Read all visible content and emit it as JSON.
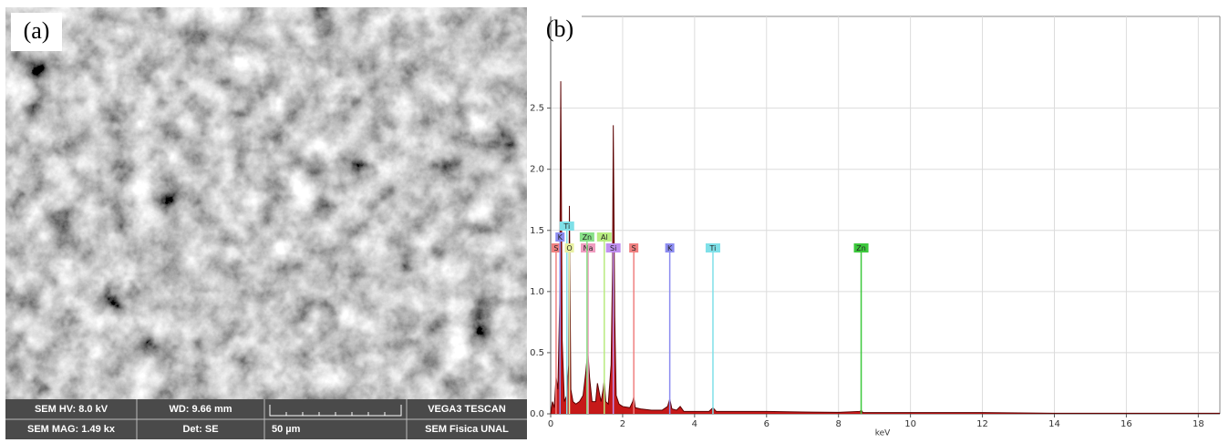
{
  "panel_a": {
    "label": "(a)",
    "hv": "SEM HV: 8.0 kV",
    "wd": "WD: 9.66 mm",
    "brand": "VEGA3 TESCAN",
    "mag": "SEM MAG: 1.49 kx",
    "det": "Det: SE",
    "scale": "50 µm",
    "lab": "SEM Fisica UNAL"
  },
  "chart_data": {
    "type": "area",
    "label": "(b)",
    "xlabel": "keV",
    "x": [
      0,
      0.05,
      0.1,
      0.15,
      0.2,
      0.25,
      0.28,
      0.32,
      0.38,
      0.45,
      0.5,
      0.52,
      0.56,
      0.62,
      0.7,
      0.8,
      0.9,
      0.98,
      1.01,
      1.04,
      1.08,
      1.15,
      1.25,
      1.3,
      1.4,
      1.46,
      1.49,
      1.53,
      1.6,
      1.68,
      1.72,
      1.74,
      1.78,
      1.82,
      1.9,
      2.0,
      2.2,
      2.28,
      2.31,
      2.35,
      2.5,
      2.8,
      3.1,
      3.25,
      3.31,
      3.37,
      3.5,
      3.6,
      3.7,
      4.0,
      4.4,
      4.51,
      4.6,
      5.0,
      6,
      7,
      8,
      8.6,
      8.63,
      8.68,
      9,
      10,
      12,
      14,
      16,
      18,
      18.6
    ],
    "series": [
      {
        "color": "#c00000",
        "line_color": "#5a0000",
        "values": [
          0.0,
          0.1,
          0.05,
          0.3,
          0.2,
          0.9,
          2.72,
          0.6,
          0.1,
          0.15,
          0.4,
          1.7,
          0.2,
          0.1,
          0.08,
          0.1,
          0.15,
          0.35,
          0.45,
          0.48,
          0.3,
          0.1,
          0.1,
          0.25,
          0.1,
          0.2,
          0.28,
          0.1,
          0.08,
          0.4,
          1.2,
          2.36,
          0.8,
          0.15,
          0.08,
          0.06,
          0.05,
          0.1,
          0.14,
          0.05,
          0.04,
          0.03,
          0.03,
          0.06,
          0.12,
          0.04,
          0.03,
          0.06,
          0.02,
          0.02,
          0.02,
          0.05,
          0.02,
          0.02,
          0.02,
          0.015,
          0.012,
          0.02,
          0.03,
          0.01,
          0.01,
          0.01,
          0.01,
          0.005,
          0.005,
          0.005,
          0.005
        ]
      }
    ],
    "markers": [
      {
        "label": "S",
        "x": 0.15,
        "color": "#f08080"
      },
      {
        "label": "K",
        "x": 0.26,
        "color": "#8c8cf0"
      },
      {
        "label": "Ti",
        "x": 0.45,
        "color": "#7fe0e8"
      },
      {
        "label": "O",
        "x": 0.52,
        "color": "#e8f0a0"
      },
      {
        "label": "Na",
        "x": 1.04,
        "color": "#f09cc0"
      },
      {
        "label": "Zn",
        "x": 1.01,
        "color": "#88e088"
      },
      {
        "label": "Si",
        "x": 1.74,
        "color": "#c090f0"
      },
      {
        "label": "Al",
        "x": 1.49,
        "color": "#b8ec80"
      },
      {
        "label": "S",
        "x": 2.31,
        "color": "#f08080"
      },
      {
        "label": "K",
        "x": 3.31,
        "color": "#8c8cf0"
      },
      {
        "label": "Ti",
        "x": 4.51,
        "color": "#7fe0e8"
      },
      {
        "label": "Zn",
        "x": 8.63,
        "color": "#3cc83c"
      }
    ],
    "xlim": [
      0,
      18.6
    ],
    "ylim": [
      0,
      3.25
    ],
    "xticks": [
      0,
      2,
      4,
      6,
      8,
      10,
      12,
      14,
      16,
      18
    ],
    "yticks": [
      {
        "value": 0,
        "label": "0.0"
      },
      {
        "value": 0.5,
        "label": "0.5"
      },
      {
        "value": 1,
        "label": "1.0"
      },
      {
        "value": 1.5,
        "label": "1.5"
      },
      {
        "value": 2,
        "label": "2.0"
      },
      {
        "value": 2.5,
        "label": "2.5"
      }
    ],
    "grid": true
  }
}
